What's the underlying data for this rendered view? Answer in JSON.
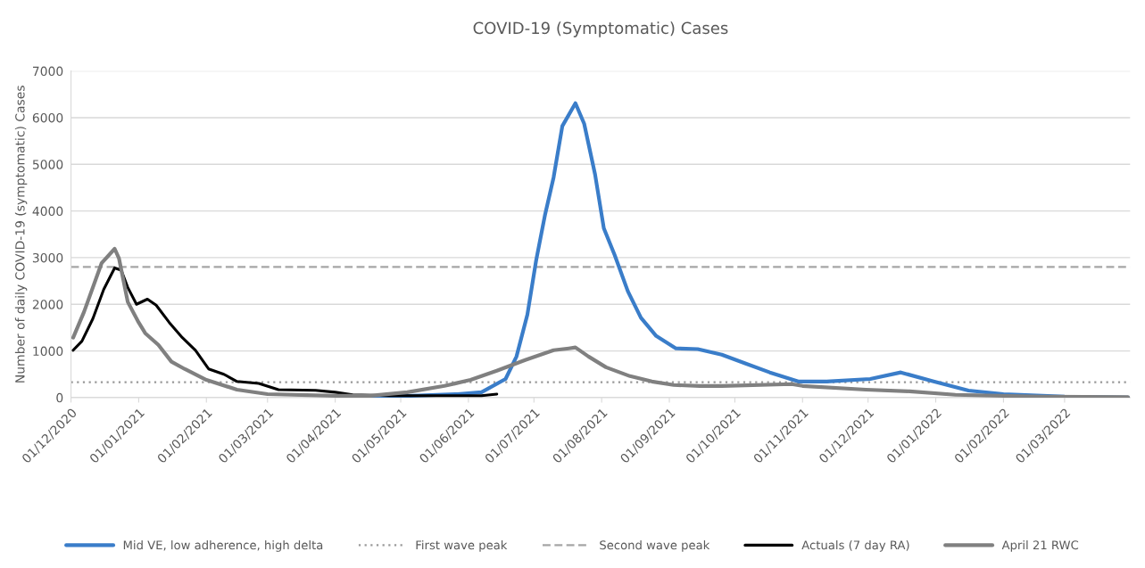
{
  "chart_data": {
    "type": "line",
    "title": "COVID-19 (Symptomatic) Cases",
    "ylabel": "Number of daily COVID-19 (symptomatic) Cases",
    "xlim": [
      "2020-12-01",
      "2022-03-31"
    ],
    "ylim": [
      0,
      7000
    ],
    "yticks": [
      0,
      1000,
      2000,
      3000,
      4000,
      5000,
      6000,
      7000
    ],
    "xticks": [
      {
        "value": "2020-12-01",
        "label": "01/12/2020"
      },
      {
        "value": "2021-01-01",
        "label": "01/01/2021"
      },
      {
        "value": "2021-02-01",
        "label": "01/02/2021"
      },
      {
        "value": "2021-03-01",
        "label": "01/03/2021"
      },
      {
        "value": "2021-04-01",
        "label": "01/04/2021"
      },
      {
        "value": "2021-05-01",
        "label": "01/05/2021"
      },
      {
        "value": "2021-06-01",
        "label": "01/06/2021"
      },
      {
        "value": "2021-07-01",
        "label": "01/07/2021"
      },
      {
        "value": "2021-08-01",
        "label": "01/08/2021"
      },
      {
        "value": "2021-09-01",
        "label": "01/09/2021"
      },
      {
        "value": "2021-10-01",
        "label": "01/10/2021"
      },
      {
        "value": "2021-11-01",
        "label": "01/11/2021"
      },
      {
        "value": "2021-12-01",
        "label": "01/12/2021"
      },
      {
        "value": "2022-01-01",
        "label": "01/01/2022"
      },
      {
        "value": "2022-02-01",
        "label": "01/02/2022"
      },
      {
        "value": "2022-03-01",
        "label": "01/03/2022"
      }
    ],
    "grid": "y",
    "legend": "bottom",
    "marker": "none",
    "series": [
      {
        "name": "Mid VE, low adherence, high delta",
        "color": "#3a7dc9",
        "line_style": "solid",
        "x": [
          "2021-04-15",
          "2021-05-01",
          "2021-05-27",
          "2021-06-07",
          "2021-06-18",
          "2021-06-23",
          "2021-06-28",
          "2021-07-02",
          "2021-07-06",
          "2021-07-10",
          "2021-07-14",
          "2021-07-20",
          "2021-07-24",
          "2021-07-29",
          "2021-08-02",
          "2021-08-07",
          "2021-08-13",
          "2021-08-19",
          "2021-08-26",
          "2021-09-04",
          "2021-09-14",
          "2021-09-25",
          "2021-10-06",
          "2021-10-17",
          "2021-10-30",
          "2021-11-12",
          "2021-12-02",
          "2021-12-16",
          "2021-12-31",
          "2022-01-16",
          "2022-02-01",
          "2022-03-01",
          "2022-03-30"
        ],
        "values": [
          20,
          30,
          75,
          115,
          400,
          880,
          1780,
          2940,
          3900,
          4720,
          5820,
          6310,
          5870,
          4780,
          3630,
          3050,
          2280,
          1710,
          1320,
          1055,
          1040,
          920,
          730,
          540,
          345,
          345,
          400,
          540,
          345,
          150,
          75,
          20,
          0
        ]
      },
      {
        "name": "Actuals (7 day RA)",
        "color": "#000000",
        "line_style": "solid",
        "x": [
          "2020-12-02",
          "2020-12-06",
          "2020-12-11",
          "2020-12-16",
          "2020-12-21",
          "2020-12-24",
          "2020-12-27",
          "2020-12-31",
          "2021-01-05",
          "2021-01-09",
          "2021-01-15",
          "2021-01-21",
          "2021-01-27",
          "2021-02-02",
          "2021-02-09",
          "2021-02-15",
          "2021-02-25",
          "2021-03-06",
          "2021-03-23",
          "2021-04-01",
          "2021-04-09",
          "2021-04-26",
          "2021-05-21",
          "2021-06-07",
          "2021-06-14"
        ],
        "values": [
          1015,
          1210,
          1690,
          2320,
          2780,
          2730,
          2360,
          2000,
          2110,
          1980,
          1610,
          1285,
          1015,
          615,
          500,
          345,
          305,
          170,
          155,
          115,
          60,
          40,
          40,
          40,
          75
        ]
      },
      {
        "name": "April 21 RWC",
        "color": "#808080",
        "line_style": "solid",
        "x": [
          "2020-12-02",
          "2020-12-07",
          "2020-12-15",
          "2020-12-21",
          "2020-12-23",
          "2020-12-27",
          "2021-01-01",
          "2021-01-04",
          "2021-01-10",
          "2021-01-16",
          "2021-01-22",
          "2021-02-01",
          "2021-02-15",
          "2021-03-01",
          "2021-04-01",
          "2021-04-17",
          "2021-05-04",
          "2021-05-21",
          "2021-06-02",
          "2021-06-14",
          "2021-06-27",
          "2021-07-10",
          "2021-07-17",
          "2021-07-20",
          "2021-07-26",
          "2021-08-03",
          "2021-08-14",
          "2021-08-24",
          "2021-09-03",
          "2021-09-15",
          "2021-09-25",
          "2021-10-27",
          "2021-11-01",
          "2021-11-30",
          "2021-12-20",
          "2022-01-10",
          "2022-02-19",
          "2022-03-30"
        ],
        "values": [
          1285,
          1840,
          2880,
          3190,
          2980,
          2050,
          1610,
          1380,
          1130,
          770,
          615,
          380,
          170,
          75,
          40,
          40,
          115,
          250,
          380,
          575,
          805,
          1015,
          1055,
          1075,
          880,
          650,
          460,
          345,
          270,
          250,
          250,
          290,
          250,
          170,
          135,
          60,
          20,
          10
        ]
      }
    ],
    "ref_lines": [
      {
        "axis": "y",
        "value": 330,
        "label": "First wave peak",
        "color": "#999999",
        "line_style": "dotted"
      },
      {
        "axis": "y",
        "value": 2800,
        "label": "Second wave peak",
        "color": "#a6a6a6",
        "line_style": "dashed"
      }
    ]
  }
}
